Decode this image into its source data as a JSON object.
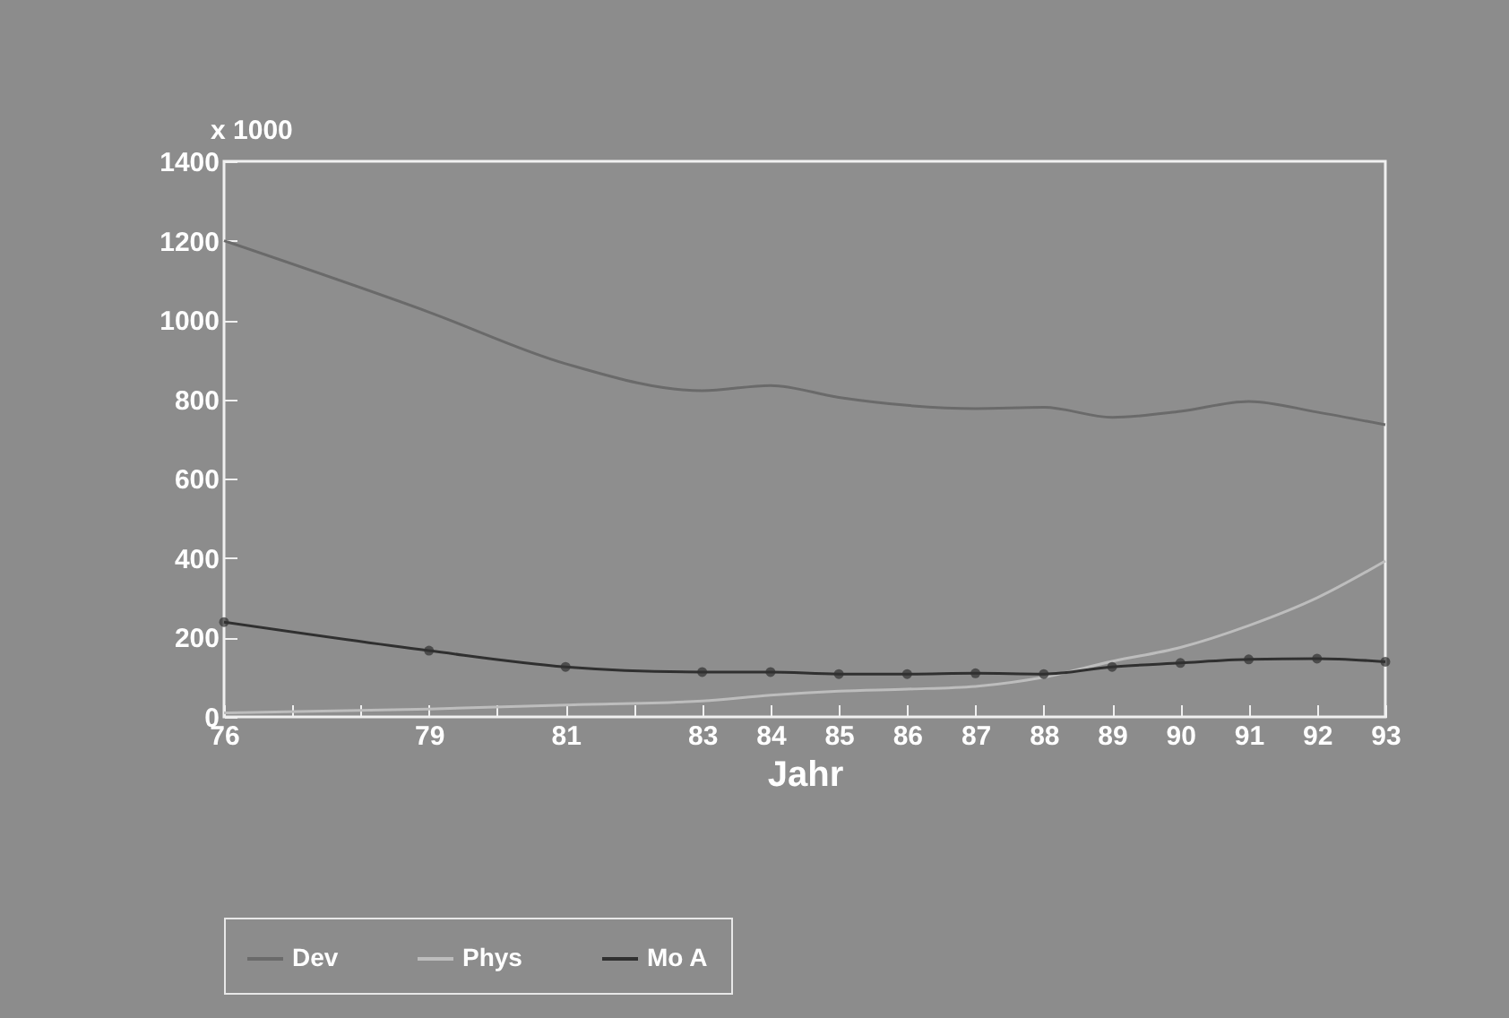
{
  "chart_data": {
    "type": "line",
    "xlabel": "Jahr",
    "ylabel": "x 1000",
    "x": [
      76,
      79,
      81,
      83,
      84,
      85,
      86,
      87,
      88,
      89,
      90,
      91,
      92,
      93
    ],
    "series": [
      {
        "name": "Dev",
        "color": "#6a6a6a",
        "marker": "none",
        "values": [
          1200,
          1020,
          890,
          822,
          835,
          805,
          785,
          777,
          780,
          755,
          770,
          795,
          768,
          736
        ]
      },
      {
        "name": "Phys",
        "color": "#bdbdbd",
        "marker": "none",
        "values": [
          10,
          20,
          30,
          40,
          55,
          65,
          70,
          77,
          100,
          140,
          175,
          230,
          300,
          393
        ]
      },
      {
        "name": "Mo A",
        "color": "#303030",
        "marker": "circle",
        "values": [
          239,
          167,
          126,
          113,
          113,
          108,
          108,
          110,
          108,
          126,
          136,
          145,
          147,
          139
        ]
      }
    ],
    "xlim": [
      76,
      93
    ],
    "xticks": [
      76,
      {
        "value": 77,
        "label": null
      },
      {
        "value": 78,
        "label": null
      },
      79,
      {
        "value": 80,
        "label": null
      },
      81,
      {
        "value": 82,
        "label": null
      },
      83,
      84,
      85,
      86,
      87,
      88,
      89,
      90,
      91,
      92,
      93
    ],
    "ylim": [
      0,
      1400
    ],
    "yticks": [
      0,
      200,
      400,
      600,
      800,
      1000,
      1200,
      1400
    ],
    "grid": false,
    "legend": "bottom"
  }
}
